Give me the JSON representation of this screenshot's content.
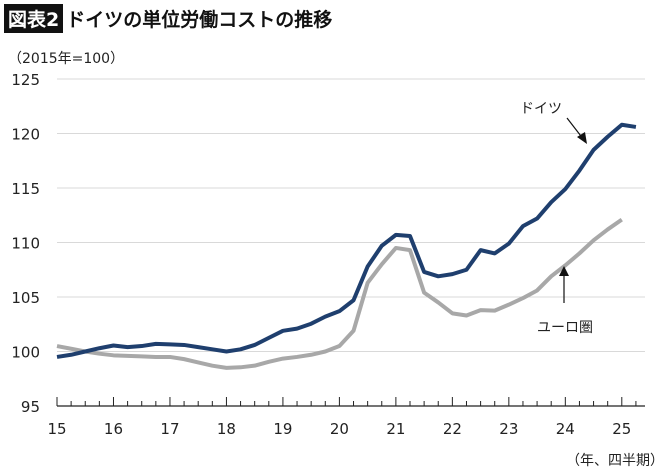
{
  "title": {
    "badge": "図表2",
    "text": "ドイツの単位労働コストの推移"
  },
  "unit_label": "（2015年=100）",
  "x_unit_label": "（年、四半期）",
  "colors": {
    "germany": "#1f3f6e",
    "euro": "#a8a8a8",
    "grid": "#d9d9d9"
  },
  "chart_data": {
    "type": "line",
    "ylim": [
      95,
      125
    ],
    "yticks": [
      95,
      100,
      105,
      110,
      115,
      120,
      125
    ],
    "xtick_labels": [
      "15",
      "16",
      "17",
      "18",
      "19",
      "20",
      "21",
      "22",
      "23",
      "24",
      "25"
    ],
    "x_start": "2015Q1",
    "grid": "horizontal",
    "series": [
      {
        "name": "ドイツ",
        "values": [
          99.5,
          99.7,
          100.0,
          100.3,
          100.55,
          100.4,
          100.5,
          100.7,
          100.65,
          100.6,
          100.4,
          100.2,
          100.0,
          100.2,
          100.6,
          101.25,
          101.9,
          102.1,
          102.55,
          103.2,
          103.7,
          104.7,
          107.8,
          109.7,
          110.7,
          110.6,
          107.3,
          106.9,
          107.1,
          107.5,
          109.3,
          109.0,
          109.9,
          111.5,
          112.2,
          113.7,
          114.9,
          116.6,
          118.5,
          119.7,
          120.8,
          120.6
        ]
      },
      {
        "name": "ユーロ圏",
        "values": [
          100.5,
          100.25,
          100.0,
          99.8,
          99.65,
          99.6,
          99.55,
          99.5,
          99.5,
          99.3,
          99.0,
          98.7,
          98.5,
          98.55,
          98.7,
          99.05,
          99.35,
          99.5,
          99.7,
          100.0,
          100.5,
          101.9,
          106.3,
          108.0,
          109.5,
          109.3,
          105.4,
          104.5,
          103.5,
          103.3,
          103.8,
          103.75,
          104.3,
          104.9,
          105.6,
          106.9,
          107.9,
          109.0,
          110.2,
          111.2,
          112.1
        ]
      }
    ]
  }
}
